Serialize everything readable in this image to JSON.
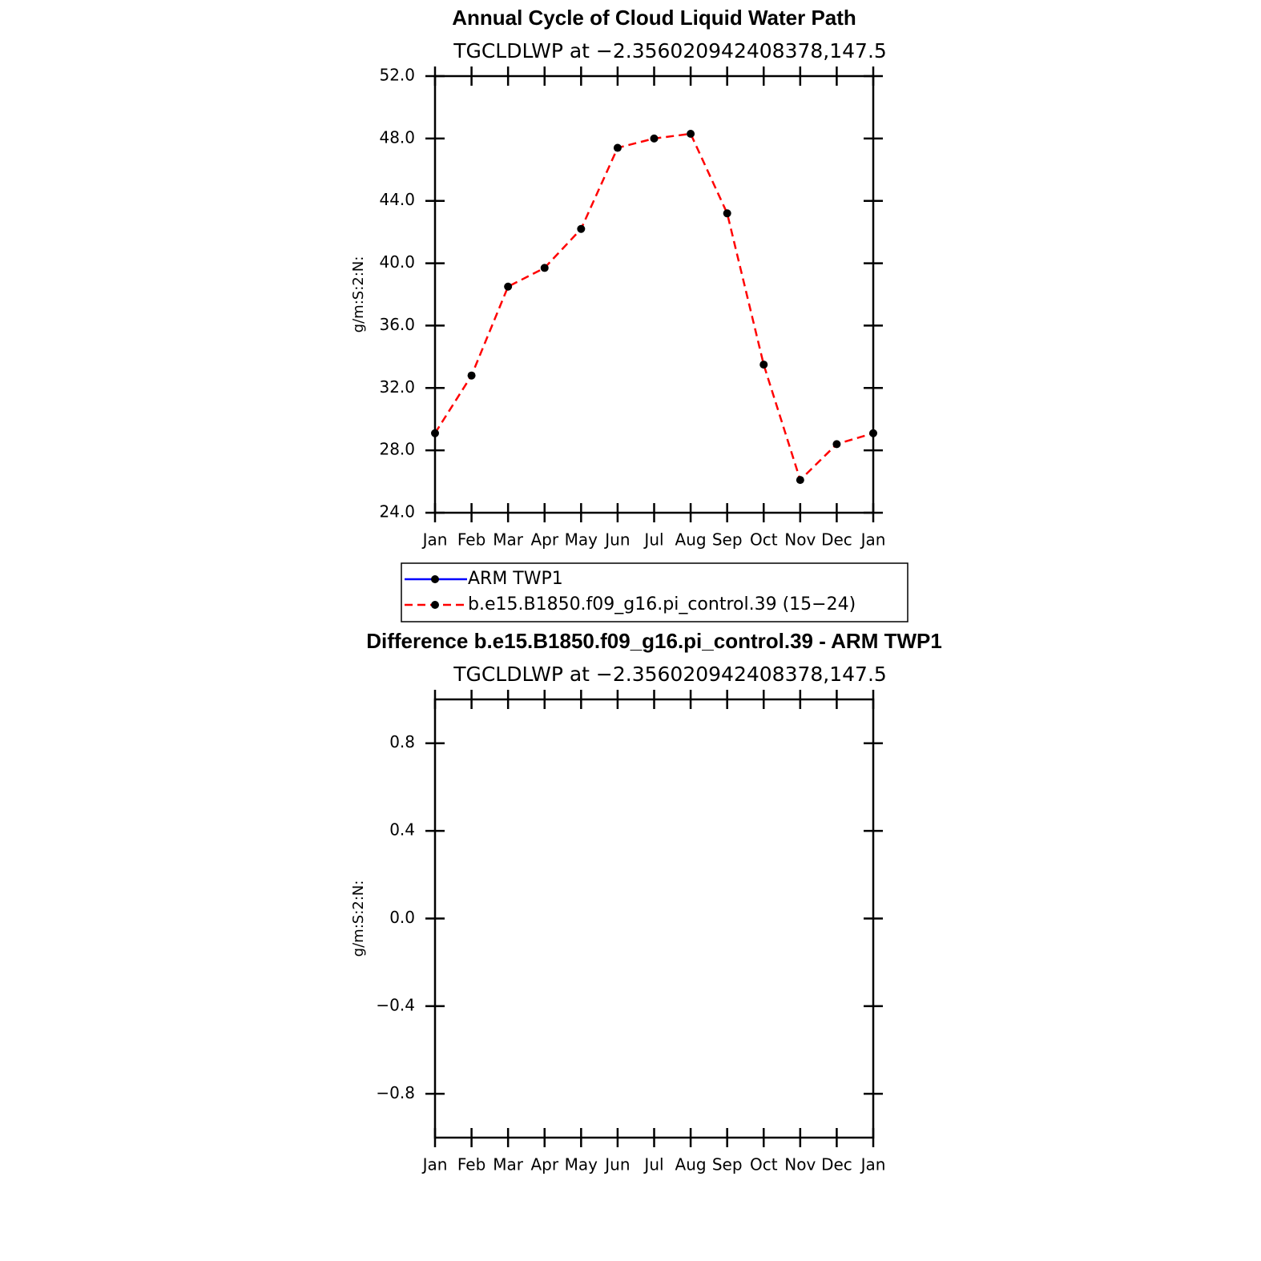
{
  "chart_data": [
    {
      "type": "line",
      "title": "Annual Cycle of Cloud Liquid Water Path",
      "subtitle": "TGCLDLWP at −2.356020942408378,147.5",
      "ylabel": "g/m:S:2:N:",
      "categories": [
        "Jan",
        "Feb",
        "Mar",
        "Apr",
        "May",
        "Jun",
        "Jul",
        "Aug",
        "Sep",
        "Oct",
        "Nov",
        "Dec",
        "Jan"
      ],
      "series": [
        {
          "name": "ARM TWP1",
          "color": "#0000ff",
          "line_style": "solid",
          "marker_color": "#000000",
          "values": [
            null,
            null,
            null,
            null,
            null,
            null,
            null,
            null,
            null,
            null,
            null,
            null,
            null
          ]
        },
        {
          "name": "b.e15.B1850.f09_g16.pi_control.39 (15−24)",
          "color": "#ff0000",
          "line_style": "dashed",
          "marker_color": "#000000",
          "values": [
            29.1,
            32.8,
            38.5,
            39.7,
            42.2,
            47.4,
            48.0,
            48.3,
            43.2,
            33.5,
            26.1,
            28.4,
            29.1
          ]
        }
      ],
      "ylim": [
        24,
        52
      ],
      "yticks": [
        {
          "value": 24,
          "label": "24.0"
        },
        {
          "value": 28,
          "label": "28.0"
        },
        {
          "value": 32,
          "label": "32.0"
        },
        {
          "value": 36,
          "label": "36.0"
        },
        {
          "value": 40,
          "label": "40.0"
        },
        {
          "value": 44,
          "label": "44.0"
        },
        {
          "value": 48,
          "label": "48.0"
        },
        {
          "value": 52,
          "label": "52.0"
        }
      ],
      "legend": "below"
    },
    {
      "type": "line",
      "title": "Difference b.e15.B1850.f09_g16.pi_control.39 - ARM TWP1",
      "subtitle": "TGCLDLWP at −2.356020942408378,147.5",
      "ylabel": "g/m:S:2:N:",
      "categories": [
        "Jan",
        "Feb",
        "Mar",
        "Apr",
        "May",
        "Jun",
        "Jul",
        "Aug",
        "Sep",
        "Oct",
        "Nov",
        "Dec",
        "Jan"
      ],
      "ylim": [
        -1,
        1
      ],
      "yticks": [
        {
          "value": -0.8,
          "label": "−0.8"
        },
        {
          "value": -0.4,
          "label": "−0.4"
        },
        {
          "value": 0,
          "label": "0.0"
        },
        0.4,
        0.8
      ]
    }
  ]
}
